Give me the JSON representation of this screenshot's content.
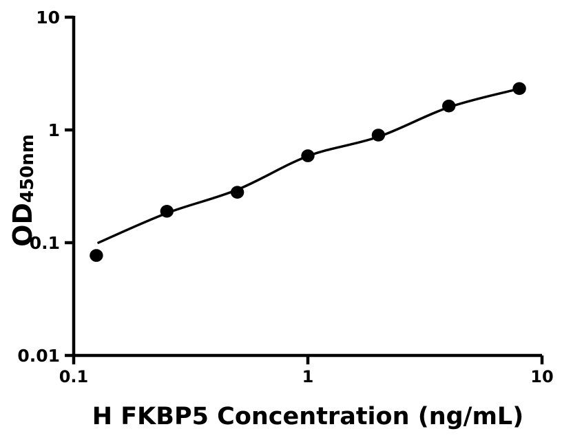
{
  "chart_data": {
    "type": "scatter",
    "title": "",
    "xlabel": "H FKBP5 Concentration (ng/mL)",
    "ylabel_main": "OD",
    "ylabel_sub": "450nm",
    "x_scale": "log",
    "y_scale": "log",
    "xlim": [
      0.1,
      10
    ],
    "ylim": [
      0.01,
      10
    ],
    "x_ticks": {
      "values": [
        0.1,
        1,
        10
      ],
      "labels": [
        "0.1",
        "1",
        "10"
      ]
    },
    "y_ticks": {
      "values": [
        10,
        1,
        0.1,
        0.01
      ],
      "labels": [
        "10",
        "1",
        "0.1",
        "0.01"
      ]
    },
    "grid": false,
    "legend": false,
    "colors": {
      "foreground": "#000000",
      "background": "#ffffff"
    },
    "series": [
      {
        "name": "standard-curve-fit",
        "type": "line",
        "color": "#000000",
        "x": [
          0.1276,
          0.25,
          0.5,
          1,
          2,
          4,
          8
        ],
        "y": [
          0.1,
          0.183,
          0.295,
          0.586,
          0.869,
          1.59,
          2.32
        ]
      },
      {
        "name": "standard-points",
        "type": "scatter",
        "marker": "filled-circle",
        "color": "#000000",
        "x": [
          0.125,
          0.25,
          0.5,
          1,
          2,
          4,
          8
        ],
        "y": [
          0.077,
          0.19,
          0.28,
          0.59,
          0.9,
          1.63,
          2.33
        ]
      }
    ]
  }
}
